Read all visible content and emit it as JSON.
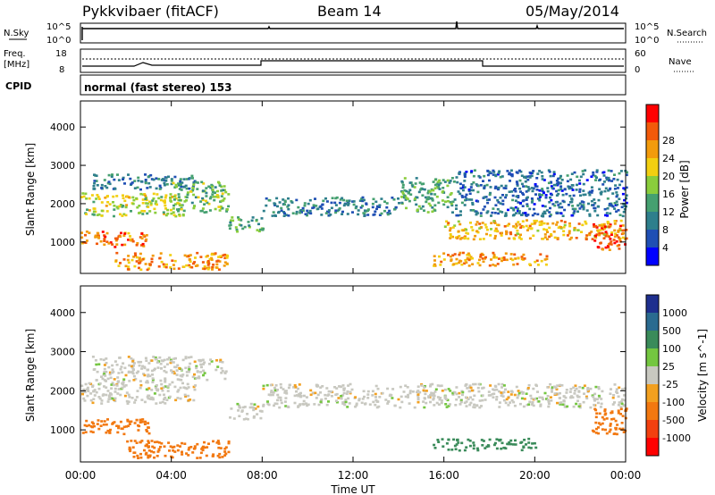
{
  "header": {
    "radar": "Pykkvibaer (fitACF)",
    "beam": "Beam 14",
    "date": "05/May/2014"
  },
  "panels": {
    "nsky": {
      "label": "N.Sky",
      "ticks": [
        "10^5",
        "10^0"
      ],
      "right_ticks": [
        "10^5",
        "10^0"
      ],
      "right_label": "N.Search"
    },
    "freq": {
      "label_top": "Freq.",
      "label_bottom": "[MHz]",
      "ticks": [
        "18",
        "8"
      ],
      "right_ticks": [
        "60",
        "0"
      ],
      "right_label": "Nave"
    },
    "cpid": {
      "label": "CPID",
      "text": "normal (fast stereo) 153"
    }
  },
  "colors": {
    "power_scale": [
      "#0000ff",
      "#1f4fb4",
      "#2e7f8c",
      "#45a070",
      "#8acd3c",
      "#f2cf11",
      "#f29b0c",
      "#f25a0a",
      "#ff0000"
    ],
    "velocity_scale": [
      "#1e2f8e",
      "#2a6b90",
      "#3a8b5a",
      "#74c640",
      "#c8c8c0",
      "#f2a020",
      "#f27810",
      "#f24010",
      "#ff0000"
    ]
  },
  "chart_data": [
    {
      "type": "heatmap",
      "title": "Power",
      "xlabel": "Time UT",
      "ylabel": "Slant Range [km]",
      "x_ticks": [
        "00:00",
        "04:00",
        "08:00",
        "12:00",
        "16:00",
        "20:00",
        "00:00"
      ],
      "xlim": [
        0,
        24
      ],
      "y_ticks": [
        1000,
        2000,
        3000,
        4000
      ],
      "ylim": [
        180,
        4680
      ],
      "colorbar": {
        "label": "Power [dB]",
        "ticks": [
          "4",
          "8",
          "12",
          "16",
          "20",
          "24",
          "28"
        ],
        "range": [
          0,
          32
        ]
      },
      "bands": [
        {
          "t0": 0.0,
          "t1": 3.0,
          "r0": 900,
          "r1": 1300,
          "value": 28
        },
        {
          "t0": 0.0,
          "t1": 4.5,
          "r0": 1700,
          "r1": 2300,
          "value": 20
        },
        {
          "t0": 0.5,
          "t1": 5.0,
          "r0": 2400,
          "r1": 2800,
          "value": 10
        },
        {
          "t0": 4.0,
          "t1": 6.5,
          "r0": 1800,
          "r1": 2600,
          "value": 16
        },
        {
          "t0": 6.5,
          "t1": 8.0,
          "r0": 1300,
          "r1": 1700,
          "value": 14
        },
        {
          "t0": 1.5,
          "t1": 6.5,
          "r0": 300,
          "r1": 750,
          "value": 26
        },
        {
          "t0": 8.0,
          "t1": 14.0,
          "r0": 1700,
          "r1": 2200,
          "value": 10
        },
        {
          "t0": 14.0,
          "t1": 16.5,
          "r0": 1800,
          "r1": 2700,
          "value": 14
        },
        {
          "t0": 16.0,
          "t1": 24.0,
          "r0": 1100,
          "r1": 1600,
          "value": 24
        },
        {
          "t0": 16.5,
          "t1": 24.0,
          "r0": 1700,
          "r1": 2900,
          "value": 8
        },
        {
          "t0": 15.5,
          "t1": 20.5,
          "r0": 400,
          "r1": 750,
          "value": 26
        },
        {
          "t0": 22.5,
          "t1": 24.0,
          "r0": 800,
          "r1": 1500,
          "value": 30
        }
      ]
    },
    {
      "type": "heatmap",
      "title": "Velocity",
      "xlabel": "Time UT",
      "ylabel": "Slant Range [km]",
      "x_ticks": [
        "00:00",
        "04:00",
        "08:00",
        "12:00",
        "16:00",
        "20:00",
        "00:00"
      ],
      "xlim": [
        0,
        24
      ],
      "y_ticks": [
        1000,
        2000,
        3000,
        4000
      ],
      "ylim": [
        180,
        4680
      ],
      "colorbar": {
        "label": "Velocity [m s^-1]",
        "ticks": [
          "1000",
          "500",
          "100",
          "25",
          "-25",
          "-100",
          "-500",
          "-1000"
        ]
      },
      "bands": [
        {
          "t0": 0.0,
          "t1": 3.0,
          "r0": 900,
          "r1": 1300,
          "value": -300
        },
        {
          "t0": 0.0,
          "t1": 5.0,
          "r0": 1700,
          "r1": 2300,
          "value": 0
        },
        {
          "t0": 0.5,
          "t1": 6.5,
          "r0": 2300,
          "r1": 2900,
          "value": 0
        },
        {
          "t0": 6.5,
          "t1": 8.0,
          "r0": 1300,
          "r1": 1700,
          "value": 0
        },
        {
          "t0": 2.0,
          "t1": 6.5,
          "r0": 300,
          "r1": 750,
          "value": -300
        },
        {
          "t0": 8.0,
          "t1": 24.0,
          "r0": 1600,
          "r1": 2200,
          "value": 0
        },
        {
          "t0": 15.5,
          "t1": 20.0,
          "r0": 500,
          "r1": 800,
          "value": 400
        },
        {
          "t0": 22.5,
          "t1": 24.0,
          "r0": 900,
          "r1": 1600,
          "value": -300
        }
      ]
    }
  ]
}
